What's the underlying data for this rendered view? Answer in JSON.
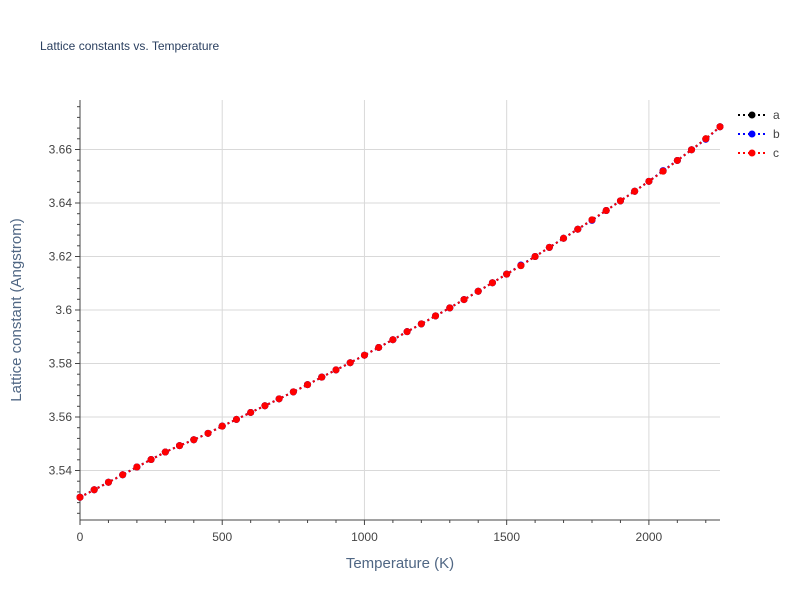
{
  "chart_data": {
    "type": "line",
    "title": "Lattice constants vs. Temperature",
    "xlabel": "Temperature (K)",
    "ylabel": "Lattice constant (Angstrom)",
    "xlim": [
      0,
      2250
    ],
    "ylim": [
      3.5215,
      3.6785
    ],
    "x_ticks": [
      0,
      500,
      1000,
      1500,
      2000
    ],
    "x_tick_labels": [
      "0",
      "500",
      "1000",
      "1500",
      "2000"
    ],
    "y_ticks": [
      3.54,
      3.56,
      3.58,
      3.6,
      3.62,
      3.64,
      3.66
    ],
    "y_tick_labels": [
      "3.54",
      "3.56",
      "3.58",
      "3.6",
      "3.62",
      "3.64",
      "3.66"
    ],
    "grid": true,
    "legend_position": "top-right",
    "x": [
      0,
      50,
      100,
      150,
      200,
      250,
      300,
      350,
      400,
      450,
      500,
      550,
      600,
      650,
      700,
      750,
      800,
      850,
      900,
      950,
      1000,
      1050,
      1100,
      1150,
      1200,
      1250,
      1300,
      1350,
      1400,
      1450,
      1500,
      1550,
      1600,
      1650,
      1700,
      1750,
      1800,
      1850,
      1900,
      1950,
      2000,
      2050,
      2100,
      2150,
      2200,
      2250
    ],
    "series": [
      {
        "name": "a",
        "color": "#000000",
        "values": [
          3.53,
          3.5328,
          3.5356,
          3.5384,
          3.5413,
          3.5441,
          3.5469,
          3.5493,
          3.5515,
          3.5539,
          3.5566,
          3.5591,
          3.5617,
          3.5642,
          3.5668,
          3.5694,
          3.5721,
          3.5749,
          3.5776,
          3.5803,
          3.5831,
          3.586,
          3.5889,
          3.5919,
          3.5948,
          3.5978,
          3.6008,
          3.6039,
          3.607,
          3.6102,
          3.6134,
          3.6166,
          3.62,
          3.6234,
          3.6268,
          3.6302,
          3.6337,
          3.6372,
          3.6408,
          3.6444,
          3.6481,
          3.6519,
          3.6559,
          3.6599,
          3.664,
          3.6685
        ]
      },
      {
        "name": "b",
        "color": "#0000ff",
        "values": [
          3.53,
          3.5328,
          3.5356,
          3.5384,
          3.5413,
          3.5441,
          3.5469,
          3.5493,
          3.5515,
          3.5539,
          3.5566,
          3.5591,
          3.5617,
          3.5642,
          3.5668,
          3.5694,
          3.5721,
          3.5749,
          3.5776,
          3.5803,
          3.5831,
          3.586,
          3.5889,
          3.5919,
          3.5948,
          3.5978,
          3.6008,
          3.6039,
          3.607,
          3.6102,
          3.6134,
          3.6168,
          3.62,
          3.6234,
          3.6268,
          3.6302,
          3.6335,
          3.6372,
          3.6408,
          3.6444,
          3.6481,
          3.6521,
          3.6559,
          3.6599,
          3.6638,
          3.6685
        ]
      },
      {
        "name": "c",
        "color": "#ff0000",
        "values": [
          3.53,
          3.5328,
          3.5356,
          3.5384,
          3.5413,
          3.5441,
          3.5469,
          3.5493,
          3.5515,
          3.5539,
          3.5566,
          3.5591,
          3.5617,
          3.5642,
          3.5668,
          3.5694,
          3.5721,
          3.5749,
          3.5776,
          3.5803,
          3.5831,
          3.586,
          3.5889,
          3.5919,
          3.5948,
          3.5978,
          3.6008,
          3.6039,
          3.607,
          3.6102,
          3.6134,
          3.6166,
          3.62,
          3.6234,
          3.6268,
          3.6302,
          3.6337,
          3.6372,
          3.6408,
          3.6444,
          3.6481,
          3.6519,
          3.6559,
          3.6599,
          3.664,
          3.6685
        ]
      }
    ]
  }
}
